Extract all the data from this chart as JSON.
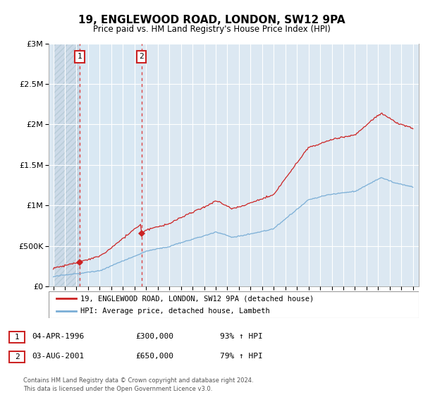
{
  "title": "19, ENGLEWOOD ROAD, LONDON, SW12 9PA",
  "subtitle": "Price paid vs. HM Land Registry's House Price Index (HPI)",
  "ytick_values": [
    0,
    500000,
    1000000,
    1500000,
    2000000,
    2500000,
    3000000
  ],
  "ylim": [
    0,
    3000000
  ],
  "sale1_date": "04-APR-1996",
  "sale1_price": 300000,
  "sale1_hpi": "93% ↑ HPI",
  "sale1_label": "1",
  "sale1_year": 1996.27,
  "sale2_date": "03-AUG-2001",
  "sale2_price": 650000,
  "sale2_label": "2",
  "sale2_hpi": "79% ↑ HPI",
  "sale2_year": 2001.6,
  "legend_line1": "19, ENGLEWOOD ROAD, LONDON, SW12 9PA (detached house)",
  "legend_line2": "HPI: Average price, detached house, Lambeth",
  "footer": "Contains HM Land Registry data © Crown copyright and database right 2024.\nThis data is licensed under the Open Government Licence v3.0.",
  "plot_bg": "#dce8f2",
  "hatch_bg": "#ccdae8",
  "red_line_color": "#cc2222",
  "blue_line_color": "#7aaed6",
  "dashed_line_color": "#dd4444",
  "label_box_color": "#cc2222",
  "grid_color": "#ffffff",
  "xstart": 1994,
  "xend": 2025
}
